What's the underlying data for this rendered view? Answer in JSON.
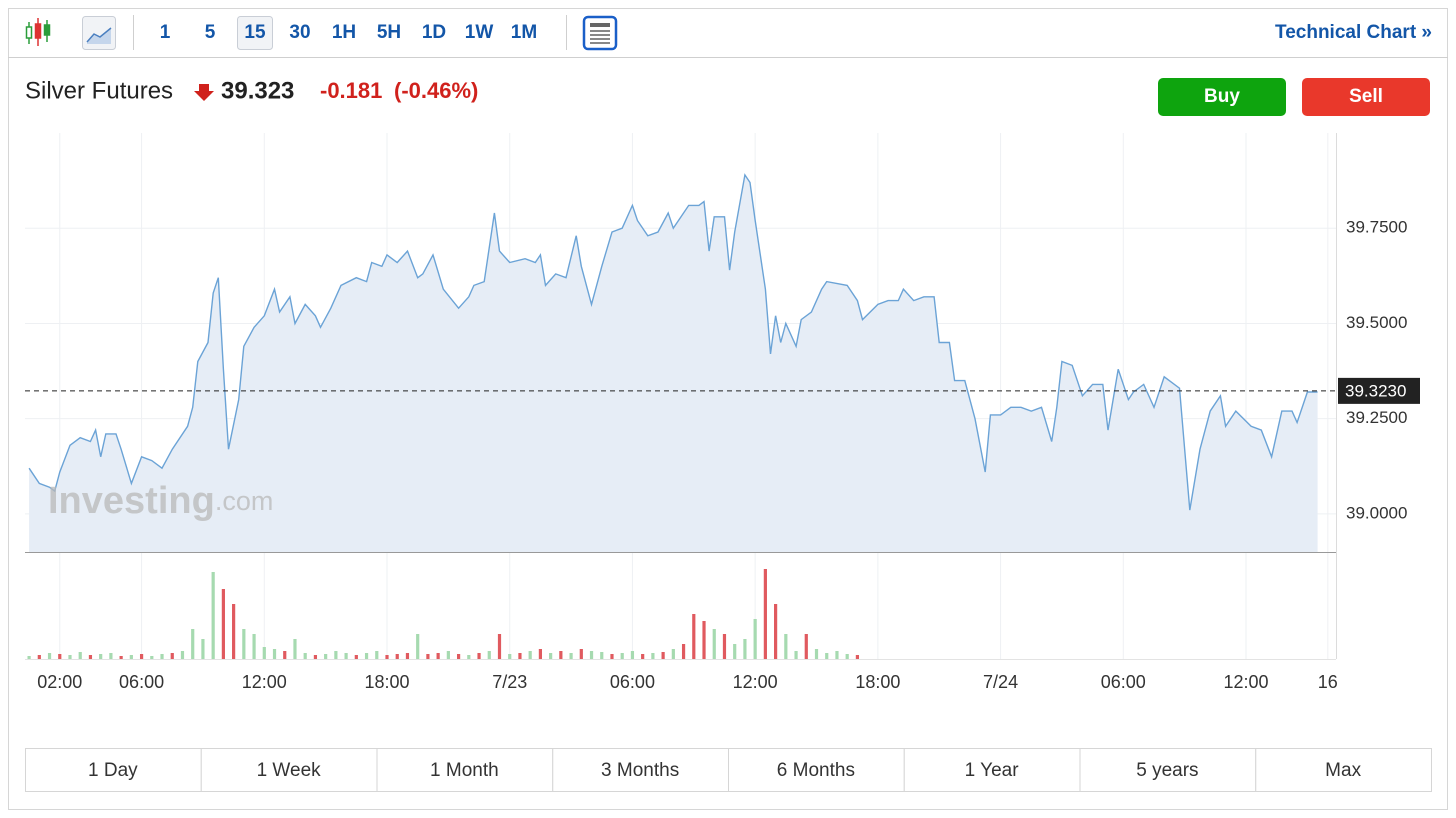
{
  "toolbar": {
    "intervals": [
      "1",
      "5",
      "15",
      "30",
      "1H",
      "5H",
      "1D",
      "1W",
      "1M"
    ],
    "selected": "15",
    "technical_chart": "Technical Chart »"
  },
  "header": {
    "instrument": "Silver Futures",
    "price": "39.323",
    "change": "-0.181",
    "change_pct": "(-0.46%)",
    "buy": "Buy",
    "sell": "Sell"
  },
  "watermark": {
    "brand": "Investing",
    "domain": ".com"
  },
  "chart_data": {
    "type": "area",
    "color": "#6ba3d6",
    "fill": "#e6edf6",
    "grid": true,
    "x": [
      0.5,
      1.0,
      1.5,
      1.75,
      2.0,
      2.5,
      3.0,
      3.5,
      3.75,
      4.0,
      4.25,
      4.75,
      5.0,
      5.5,
      6.0,
      6.5,
      7.0,
      7.5,
      8.25,
      8.5,
      8.75,
      9.25,
      9.5,
      9.75,
      10.0,
      10.25,
      10.75,
      11.0,
      11.5,
      12.0,
      12.5,
      12.75,
      13.25,
      13.5,
      14.0,
      14.5,
      14.75,
      15.25,
      15.75,
      16.5,
      17.0,
      17.25,
      17.75,
      18.0,
      18.5,
      19.0,
      19.5,
      19.75,
      20.25,
      20.75,
      21.5,
      22.0,
      22.25,
      22.75,
      23.25,
      23.5,
      24.0,
      24.75,
      25.25,
      25.5,
      25.75,
      26.25,
      26.75,
      27.25,
      27.5,
      28.0,
      28.5,
      29.0,
      29.5,
      30.0,
      30.25,
      30.75,
      31.25,
      31.75,
      32.0,
      32.75,
      33.25,
      33.5,
      33.75,
      34.0,
      34.5,
      34.75,
      35.0,
      35.5,
      35.75,
      36.0,
      36.5,
      36.75,
      37.0,
      37.25,
      37.5,
      38.0,
      38.25,
      38.75,
      39.25,
      39.5,
      40.5,
      41.0,
      41.25,
      42.0,
      42.5,
      43.0,
      43.25,
      43.75,
      44.25,
      44.75,
      45.0,
      45.5,
      45.75,
      46.25,
      46.75,
      47.25,
      47.5,
      48.0,
      48.5,
      49.0,
      49.5,
      50.0,
      50.5,
      50.75,
      51.0,
      51.5,
      52.0,
      52.5,
      53.0,
      53.25,
      53.75,
      54.25,
      54.5,
      55.0,
      55.5,
      56.0,
      56.75,
      57.25,
      57.75,
      58.25,
      58.75,
      59.0,
      59.5,
      60.25,
      60.75,
      61.25,
      61.75,
      62.25,
      62.5,
      63.0,
      63.5
    ],
    "values": [
      39.12,
      39.08,
      39.07,
      39.06,
      39.11,
      39.18,
      39.2,
      39.19,
      39.22,
      39.15,
      39.21,
      39.21,
      39.17,
      39.08,
      39.15,
      39.14,
      39.12,
      39.17,
      39.23,
      39.28,
      39.4,
      39.45,
      39.58,
      39.62,
      39.38,
      39.17,
      39.3,
      39.44,
      39.49,
      39.52,
      39.59,
      39.53,
      39.57,
      39.5,
      39.55,
      39.52,
      39.49,
      39.54,
      39.6,
      39.62,
      39.61,
      39.66,
      39.65,
      39.68,
      39.66,
      39.69,
      39.62,
      39.63,
      39.68,
      39.59,
      39.54,
      39.57,
      39.6,
      39.61,
      39.79,
      39.69,
      39.66,
      39.67,
      39.66,
      39.68,
      39.6,
      39.63,
      39.62,
      39.73,
      39.65,
      39.55,
      39.65,
      39.74,
      39.75,
      39.81,
      39.77,
      39.73,
      39.74,
      39.79,
      39.75,
      39.81,
      39.81,
      39.82,
      39.69,
      39.78,
      39.78,
      39.64,
      39.74,
      39.89,
      39.87,
      39.77,
      39.59,
      39.42,
      39.52,
      39.45,
      39.5,
      39.44,
      39.51,
      39.53,
      39.59,
      39.61,
      39.6,
      39.56,
      39.51,
      39.55,
      39.56,
      39.56,
      39.59,
      39.56,
      39.57,
      39.57,
      39.45,
      39.45,
      39.35,
      39.35,
      39.25,
      39.11,
      39.26,
      39.26,
      39.28,
      39.28,
      39.27,
      39.28,
      39.19,
      39.28,
      39.4,
      39.39,
      39.31,
      39.34,
      39.34,
      39.22,
      39.38,
      39.3,
      39.32,
      39.34,
      39.28,
      39.36,
      39.33,
      39.01,
      39.17,
      39.27,
      39.31,
      39.23,
      39.27,
      39.23,
      39.22,
      39.15,
      39.27,
      39.27,
      39.24,
      39.32,
      39.32
    ],
    "last": {
      "value": 39.323,
      "label": "39.3230"
    },
    "xlim": [
      0.3,
      64.4
    ],
    "xticks": [
      {
        "value": 2,
        "label": "02:00"
      },
      {
        "value": 6,
        "label": "06:00"
      },
      {
        "value": 12,
        "label": "12:00"
      },
      {
        "value": 18,
        "label": "18:00"
      },
      {
        "value": 24,
        "label": "7/23"
      },
      {
        "value": 30,
        "label": "06:00"
      },
      {
        "value": 36,
        "label": "12:00"
      },
      {
        "value": 42,
        "label": "18:00"
      },
      {
        "value": 48,
        "label": "7/24"
      },
      {
        "value": 54,
        "label": "06:00"
      },
      {
        "value": 60,
        "label": "12:00"
      },
      {
        "value": 64,
        "label": "16"
      }
    ],
    "ylim": [
      38.9,
      40.0
    ],
    "yticks": [
      {
        "value": 39.0,
        "label": "39.0000"
      },
      {
        "value": 39.25,
        "label": "39.2500"
      },
      {
        "value": 39.5,
        "label": "39.5000"
      },
      {
        "value": 39.75,
        "label": "39.7500"
      }
    ],
    "volume": {
      "ylim": [
        0,
        100
      ],
      "x": [
        0.5,
        1.0,
        1.5,
        2.0,
        2.5,
        3.0,
        3.5,
        4.0,
        4.5,
        5.0,
        5.5,
        6.0,
        6.5,
        7.0,
        7.5,
        8.0,
        8.5,
        9.0,
        9.5,
        10.0,
        10.5,
        11.0,
        11.5,
        12.0,
        12.5,
        13.0,
        13.5,
        14.0,
        14.5,
        15.0,
        15.5,
        16.0,
        16.5,
        17.0,
        17.5,
        18.0,
        18.5,
        19.0,
        19.5,
        20.0,
        20.5,
        21.0,
        21.5,
        22.0,
        22.5,
        23.0,
        23.5,
        24.0,
        24.5,
        25.0,
        25.5,
        26.0,
        26.5,
        27.0,
        27.5,
        28.0,
        28.5,
        29.0,
        29.5,
        30.0,
        30.5,
        31.0,
        31.5,
        32.0,
        32.5,
        33.0,
        33.5,
        34.0,
        34.5,
        35.0,
        35.5,
        36.0,
        36.5,
        37.0,
        37.5,
        38.0,
        38.5,
        39.0,
        39.5,
        40.0,
        40.5,
        41.0
      ],
      "values": [
        3,
        4,
        6,
        5,
        4,
        7,
        4,
        5,
        6,
        3,
        4,
        5,
        3,
        5,
        6,
        8,
        30,
        20,
        87,
        70,
        55,
        30,
        25,
        12,
        10,
        8,
        20,
        6,
        4,
        5,
        8,
        6,
        4,
        6,
        8,
        4,
        5,
        6,
        25,
        5,
        6,
        8,
        5,
        4,
        6,
        8,
        25,
        5,
        6,
        8,
        10,
        6,
        8,
        6,
        10,
        8,
        7,
        5,
        6,
        8,
        5,
        6,
        7,
        10,
        15,
        45,
        38,
        30,
        25,
        15,
        20,
        40,
        90,
        55,
        25,
        8,
        25,
        10,
        6,
        8,
        5,
        4
      ],
      "colors": [
        "#a6dab0",
        "#e05a5f",
        "#a6dab0",
        "#e05a5f",
        "#a6dab0",
        "#a6dab0",
        "#e05a5f",
        "#a6dab0",
        "#a6dab0",
        "#e05a5f",
        "#a6dab0",
        "#e05a5f",
        "#a6dab0",
        "#a6dab0",
        "#e05a5f",
        "#a6dab0",
        "#a6dab0",
        "#a6dab0",
        "#a6dab0",
        "#e05a5f",
        "#e05a5f",
        "#a6dab0",
        "#a6dab0",
        "#a6dab0",
        "#a6dab0",
        "#e05a5f",
        "#a6dab0",
        "#a6dab0",
        "#e05a5f",
        "#a6dab0",
        "#a6dab0",
        "#a6dab0",
        "#e05a5f",
        "#a6dab0",
        "#a6dab0",
        "#e05a5f",
        "#e05a5f",
        "#e05a5f",
        "#a6dab0",
        "#e05a5f",
        "#e05a5f",
        "#a6dab0",
        "#e05a5f",
        "#a6dab0",
        "#e05a5f",
        "#a6dab0",
        "#e05a5f",
        "#a6dab0",
        "#e05a5f",
        "#a6dab0",
        "#e05a5f",
        "#a6dab0",
        "#e05a5f",
        "#a6dab0",
        "#e05a5f",
        "#a6dab0",
        "#a6dab0",
        "#e05a5f",
        "#a6dab0",
        "#a6dab0",
        "#e05a5f",
        "#a6dab0",
        "#e05a5f",
        "#a6dab0",
        "#e05a5f",
        "#e05a5f",
        "#e05a5f",
        "#a6dab0",
        "#e05a5f",
        "#a6dab0",
        "#a6dab0",
        "#a6dab0",
        "#e05a5f",
        "#e05a5f",
        "#a6dab0",
        "#a6dab0",
        "#e05a5f",
        "#a6dab0",
        "#a6dab0",
        "#a6dab0",
        "#a6dab0",
        "#e05a5f"
      ]
    }
  },
  "ranges": [
    "1 Day",
    "1 Week",
    "1 Month",
    "3 Months",
    "6 Months",
    "1 Year",
    "5 years",
    "Max"
  ]
}
